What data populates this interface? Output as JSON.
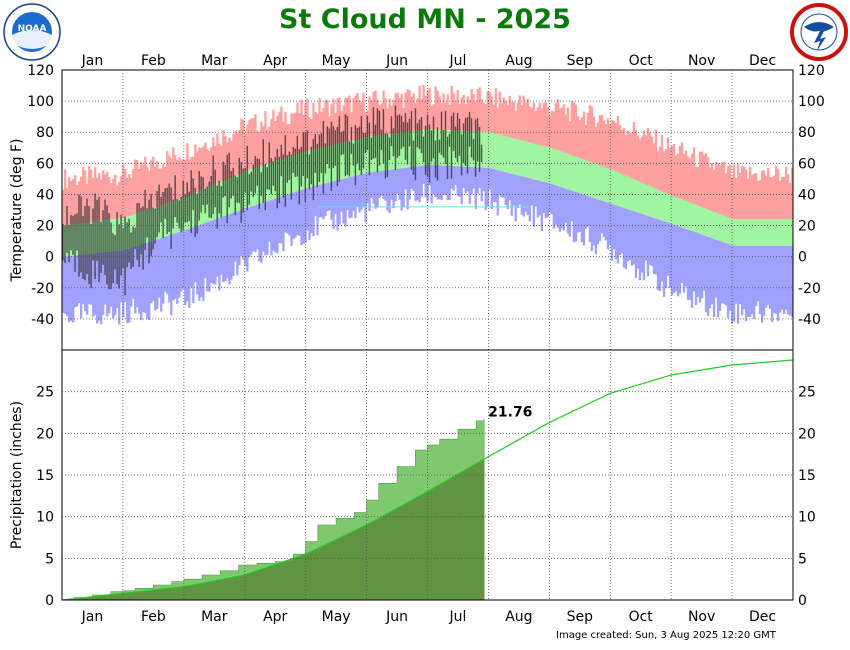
{
  "title": "St Cloud MN - 2025",
  "footer": "Image created: Sun, 3 Aug 2025 12:20 GMT",
  "logos": {
    "left": "noaa-logo",
    "left_text": "NOAA",
    "right": "nws-logo"
  },
  "colors": {
    "title": "#0a7a0a",
    "record_high": "#ffa0a0",
    "normal_range": "#a0f5a0",
    "record_low": "#a0a0ff",
    "observed": "#3a3a3a",
    "precip_observed": "#80c870",
    "precip_observed_edge": "#4a9a40",
    "precip_normal_line": "#22cc22",
    "precip_normal_fill": "#5a8a3a",
    "grid": "#555555"
  },
  "chart_data": [
    {
      "type": "area",
      "ylabel": "Temperature (deg F)",
      "months": [
        "Jan",
        "Feb",
        "Mar",
        "Apr",
        "May",
        "Jun",
        "Jul",
        "Aug",
        "Sep",
        "Oct",
        "Nov",
        "Dec"
      ],
      "ylim": [
        -60,
        120
      ],
      "yticks": [
        -40,
        -20,
        0,
        20,
        40,
        60,
        80,
        100,
        120
      ],
      "grid": true,
      "series": [
        {
          "key": "record_high",
          "x_month": [
            1,
            2,
            3,
            4,
            5,
            6,
            7,
            8,
            9,
            10,
            11,
            12
          ],
          "values": [
            50,
            53,
            68,
            84,
            95,
            100,
            104,
            102,
            96,
            88,
            70,
            53
          ]
        },
        {
          "key": "normal_high",
          "x_month": [
            1,
            2,
            3,
            4,
            5,
            6,
            7,
            8,
            9,
            10,
            11,
            12
          ],
          "values": [
            20,
            25,
            38,
            55,
            68,
            77,
            82,
            80,
            70,
            56,
            39,
            24
          ]
        },
        {
          "key": "normal_low",
          "x_month": [
            1,
            2,
            3,
            4,
            5,
            6,
            7,
            8,
            9,
            10,
            11,
            12
          ],
          "values": [
            0,
            4,
            17,
            31,
            44,
            54,
            59,
            57,
            47,
            34,
            21,
            7
          ]
        },
        {
          "key": "record_low",
          "x_month": [
            1,
            2,
            3,
            4,
            5,
            6,
            7,
            8,
            9,
            10,
            11,
            12
          ],
          "values": [
            -38,
            -36,
            -28,
            -6,
            17,
            30,
            40,
            36,
            22,
            5,
            -22,
            -36
          ]
        },
        {
          "key": "observed_high",
          "x_month": [
            1,
            1.5,
            2,
            2.5,
            3,
            3.5,
            4,
            4.5,
            5,
            5.5,
            6,
            6.5,
            7,
            7.5,
            7.9
          ],
          "values": [
            26,
            32,
            18,
            38,
            45,
            55,
            60,
            70,
            75,
            82,
            85,
            88,
            82,
            86,
            80
          ]
        },
        {
          "key": "observed_low",
          "x_month": [
            1,
            1.5,
            2,
            2.5,
            3,
            3.5,
            4,
            4.5,
            5,
            5.5,
            6,
            6.5,
            7,
            7.5,
            7.9
          ],
          "values": [
            0,
            -10,
            -15,
            10,
            20,
            28,
            32,
            40,
            45,
            55,
            58,
            62,
            58,
            62,
            58
          ]
        }
      ]
    },
    {
      "type": "area",
      "ylabel": "Precipitation (inches)",
      "months": [
        "Jan",
        "Feb",
        "Mar",
        "Apr",
        "May",
        "Jun",
        "Jul",
        "Aug",
        "Sep",
        "Oct",
        "Nov",
        "Dec"
      ],
      "ylim": [
        0,
        30
      ],
      "yticks": [
        0,
        5,
        10,
        15,
        20,
        25
      ],
      "grid": true,
      "annotation": "21.76",
      "series": [
        {
          "key": "observed_ytd",
          "x_month": [
            1,
            1.2,
            1.5,
            1.8,
            2.0,
            2.2,
            2.5,
            2.8,
            3.0,
            3.3,
            3.6,
            3.9,
            4.2,
            4.5,
            4.8,
            5.0,
            5.2,
            5.5,
            5.8,
            6.0,
            6.2,
            6.5,
            6.8,
            7.0,
            7.2,
            7.5,
            7.8,
            7.93
          ],
          "values": [
            0,
            0.3,
            0.6,
            1.0,
            1.1,
            1.4,
            1.8,
            2.2,
            2.5,
            3.0,
            3.5,
            4.2,
            4.4,
            4.6,
            5.5,
            7.0,
            9.0,
            9.8,
            10.5,
            12.0,
            14.0,
            16.0,
            18.0,
            18.6,
            19.3,
            20.5,
            21.5,
            21.76
          ]
        },
        {
          "key": "normal_ytd",
          "x_month": [
            1,
            2,
            3,
            4,
            5,
            6,
            7,
            8,
            9,
            10,
            11,
            12,
            13
          ],
          "values": [
            0,
            0.8,
            1.6,
            3.0,
            5.5,
            9.0,
            13.0,
            17.2,
            21.3,
            24.8,
            27.0,
            28.2,
            28.8
          ]
        }
      ]
    }
  ]
}
